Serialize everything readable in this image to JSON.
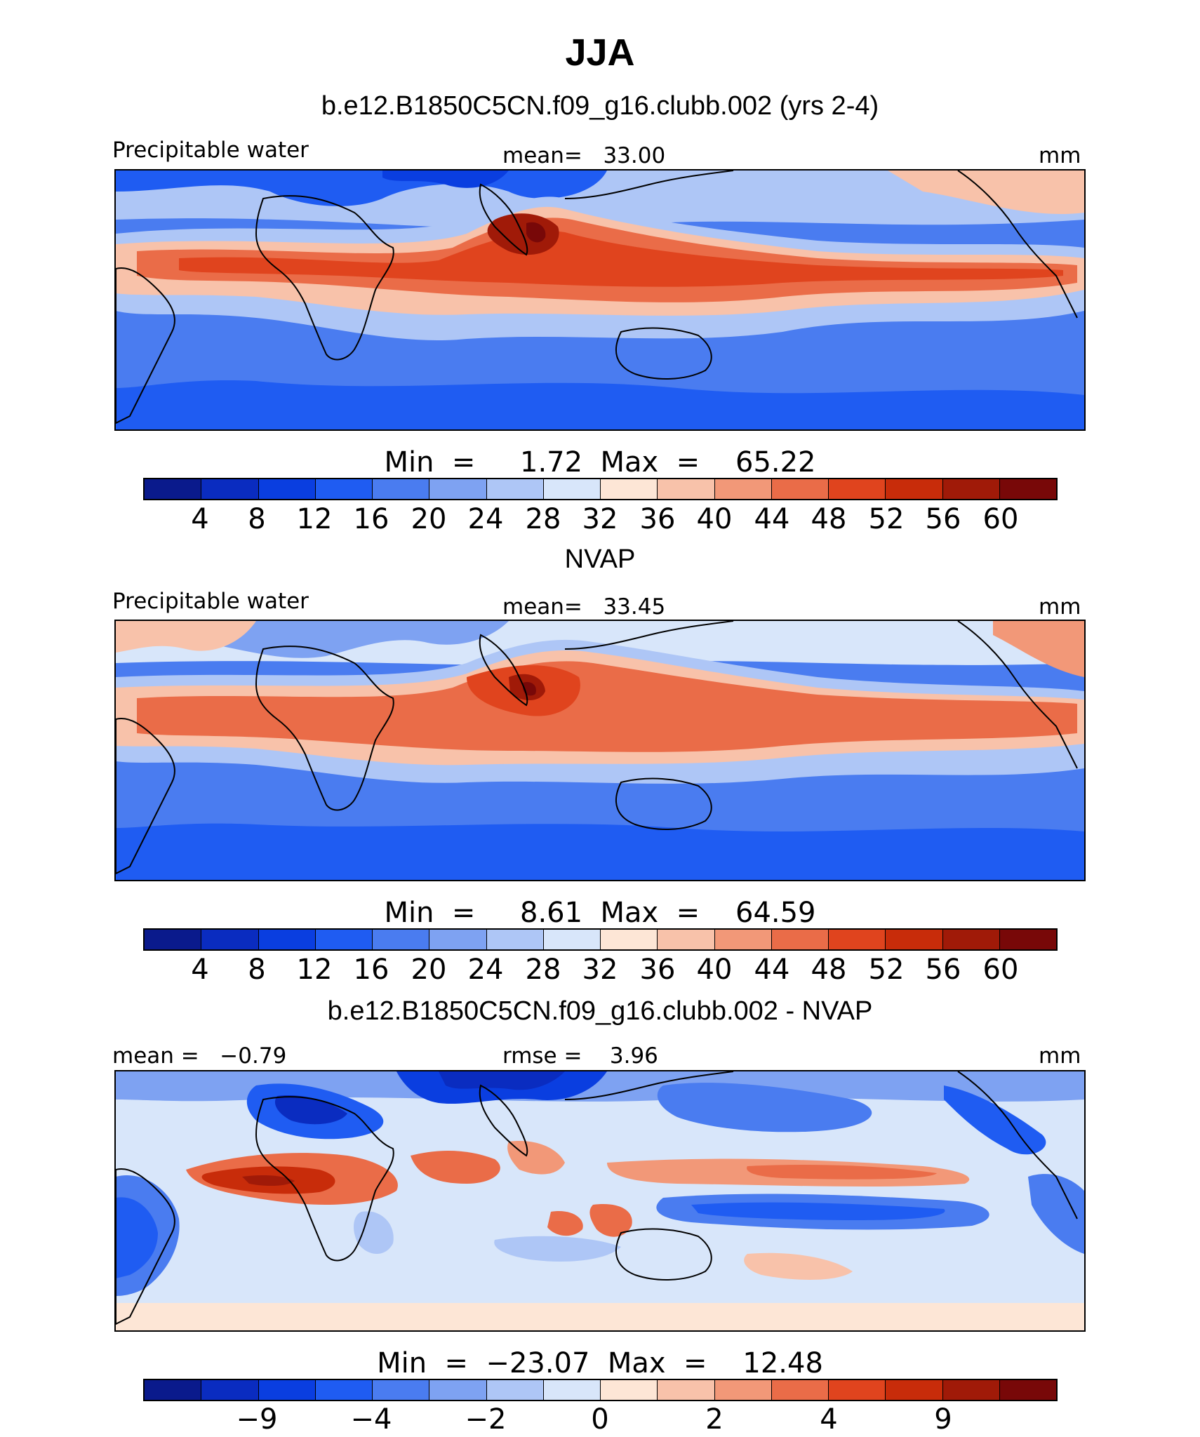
{
  "figure": {
    "title": "JJA",
    "units": "mm",
    "colorbar_colors": [
      "#0a1a8c",
      "#0a2cc0",
      "#0a3ee0",
      "#1f5cf2",
      "#4a7cf0",
      "#7ea2f2",
      "#aec6f6",
      "#d8e6fa",
      "#fde6d6",
      "#f8c2aa",
      "#f29878",
      "#ea6c48",
      "#e0441e",
      "#c82c0a",
      "#a01a08",
      "#780808"
    ]
  },
  "panels": [
    {
      "case_title": "b.e12.B1850C5CN.f09_g16.clubb.002 (yrs 2-4)",
      "left_label": "Precipitable water",
      "center_label": "mean=   33.00",
      "right_label": "mm",
      "minmax": "Min  =     1.72  Max  =    65.22",
      "colorbar_labels": [
        "4",
        "8",
        "12",
        "16",
        "20",
        "24",
        "28",
        "32",
        "36",
        "40",
        "44",
        "48",
        "52",
        "56",
        "60"
      ]
    },
    {
      "case_title": "NVAP",
      "left_label": "Precipitable water",
      "center_label": "mean=   33.45",
      "right_label": "mm",
      "minmax": "Min  =     8.61  Max  =    64.59",
      "colorbar_labels": [
        "4",
        "8",
        "12",
        "16",
        "20",
        "24",
        "28",
        "32",
        "36",
        "40",
        "44",
        "48",
        "52",
        "56",
        "60"
      ]
    },
    {
      "case_title": "b.e12.B1850C5CN.f09_g16.clubb.002 - NVAP",
      "left_label": "mean =   −0.79",
      "center_label": "rmse =    3.96",
      "right_label": "mm",
      "minmax": "Min  =  −23.07  Max  =    12.48",
      "colorbar_labels": [
        "−9",
        "−4",
        "−2",
        "0",
        "2",
        "4",
        "9"
      ]
    }
  ]
}
